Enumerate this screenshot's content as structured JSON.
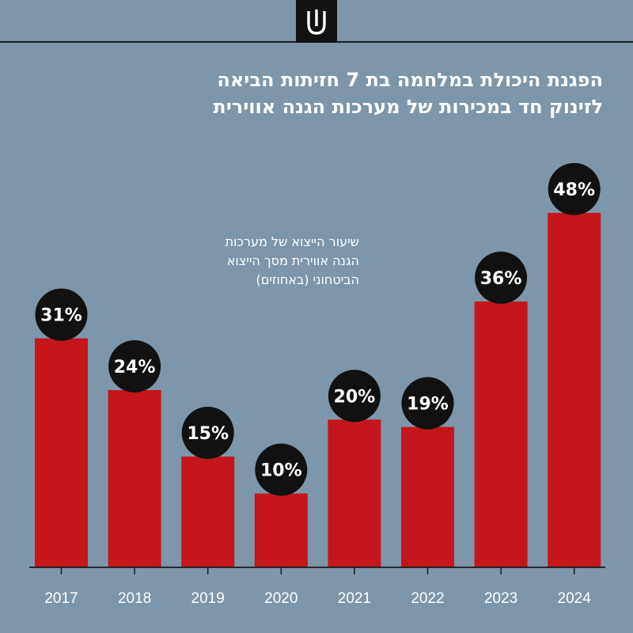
{
  "header": {
    "logo_icon": "fork-logo-icon"
  },
  "colors": {
    "background": "#7e96a9",
    "bar": "#c4161c",
    "badge": "#111111",
    "axis": "#1a1a1a"
  },
  "chart_data": {
    "type": "bar",
    "title_lines": [
      "הפגנת היכולת במלחמה בת 7 חזיתות הביאה",
      "לזינוק חד במכירות של מערכות הגנה אווירית"
    ],
    "annotation_lines": [
      "שיעור הייצוא של מערכות",
      "הגנה אווירית מסך הייצוא",
      "הביטחוני (באחוזים)"
    ],
    "categories": [
      "2017",
      "2018",
      "2019",
      "2020",
      "2021",
      "2022",
      "2023",
      "2024"
    ],
    "values": [
      31,
      24,
      15,
      10,
      20,
      19,
      36,
      48
    ],
    "value_labels": [
      "31%",
      "24%",
      "15%",
      "10%",
      "20%",
      "19%",
      "36%",
      "48%"
    ],
    "unit": "%",
    "ylim": [
      0,
      48
    ],
    "grid": false,
    "legend": "none"
  }
}
